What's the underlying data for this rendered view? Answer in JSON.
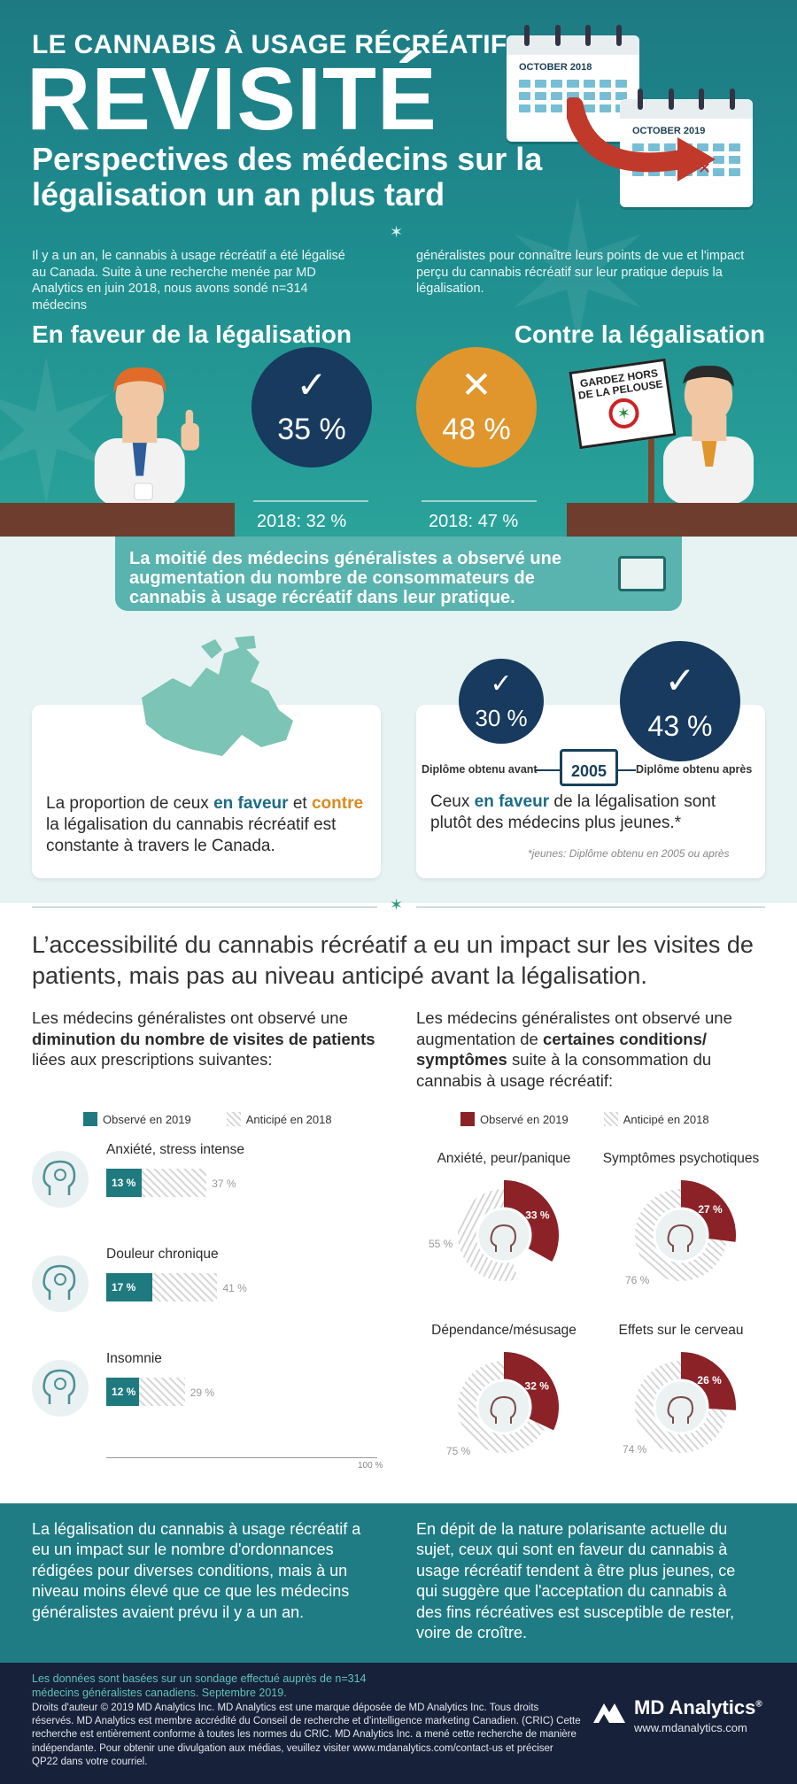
{
  "header": {
    "kicker": "LE CANNABIS À USAGE RÉCRÉATIF",
    "title": "REVISITÉ",
    "subtitle": "Perspectives des médecins sur la légalisation un an plus tard",
    "calendar_2018": "OCTOBER 2018",
    "calendar_2019": "OCTOBER 2019",
    "intro_left": "Il y a un an, le cannabis à usage récréatif a été légalisé au Canada. Suite à une recherche menée par MD Analytics en juin 2018, nous avons sondé n=314 médecins",
    "intro_right": "généralistes pour connaître leurs points de vue et l'impact perçu du cannabis récréatif sur leur pratique depuis la légalisation."
  },
  "legalization": {
    "favor_heading": "En faveur de la légalisation",
    "against_heading": "Contre la légalisation",
    "favor_pct": "35 %",
    "against_pct": "48 %",
    "favor_prev": "2018: 32 %",
    "against_prev": "2018: 47 %",
    "sign_text": "GARDEZ HORS DE LA PELOUSE"
  },
  "banner": {
    "text": "La moitié des médecins généralistes a observé une augmentation du nombre de consommateurs de cannabis à usage récréatif dans leur pratique."
  },
  "canada_card": {
    "text_1": "La proportion de ceux ",
    "favor": "en faveur",
    "text_2": " et ",
    "against": "contre",
    "text_3": " la légalisation du cannabis récréatif est constante à travers le Canada."
  },
  "young_card": {
    "before_pct": "30 %",
    "after_pct": "43 %",
    "before_label": "Diplôme obtenu avant",
    "after_label": "Diplôme obtenu après",
    "year": "2005",
    "text_1": "Ceux ",
    "favor": "en faveur",
    "text_2": " de la légalisation sont plutôt des médecins plus jeunes.*",
    "note": "*jeunes: Diplôme obtenu en 2005 ou après"
  },
  "impact": {
    "headline": "L’accessibilité du cannabis récréatif a eu un impact sur les visites de patients, mais pas au niveau anticipé avant la légalisation."
  },
  "left_col": {
    "intro_1": "Les médecins généralistes ont observé une ",
    "intro_bold": "diminution du nombre de visites de patients",
    "intro_2": " liées aux prescriptions suivantes:",
    "legend_observed": "Observé en 2019",
    "legend_anticipated": "Anticipé en 2018",
    "axis_label": "100 %"
  },
  "right_col": {
    "intro_1": "Les médecins généralistes ont observé une augmentation de ",
    "intro_bold": "certaines conditions/ symptômes",
    "intro_2": " suite à la consommation du cannabis à usage récréatif:",
    "legend_observed": "Observé en 2019",
    "legend_anticipated": "Anticipé en 2018"
  },
  "chart_data": [
    {
      "type": "bar",
      "orientation": "horizontal",
      "categories": [
        "Anxiété, stress intense",
        "Douleur chronique",
        "Insomnie"
      ],
      "series": [
        {
          "name": "Observé en 2019",
          "values": [
            13,
            17,
            12
          ],
          "labels": [
            "13 %",
            "17 %",
            "12 %"
          ]
        },
        {
          "name": "Anticipé en 2018",
          "values": [
            37,
            41,
            29
          ],
          "labels": [
            "37 %",
            "41 %",
            "29 %"
          ]
        }
      ],
      "xlim": [
        0,
        100
      ],
      "colors": {
        "observed": "#1e7a7f",
        "anticipated": "#d8d8d8"
      }
    },
    {
      "type": "pie",
      "categories": [
        "Anxiété, peur/panique",
        "Symptômes psychotiques",
        "Dépendance/mésusage",
        "Effets sur le cerveau"
      ],
      "series": [
        {
          "name": "Observé en 2019",
          "values": [
            33,
            27,
            32,
            26
          ],
          "labels": [
            "33 %",
            "27 %",
            "32 %",
            "26 %"
          ]
        },
        {
          "name": "Anticipé en 2018",
          "values": [
            55,
            76,
            75,
            74
          ],
          "labels": [
            "55 %",
            "76 %",
            "75 %",
            "74 %"
          ]
        }
      ],
      "colors": {
        "observed": "#8a2228",
        "anticipated": "#d8d8d8"
      }
    }
  ],
  "icons": {
    "anxiety": "head-lightning-icon",
    "pain": "head-pain-icon",
    "insomnia": "head-no-sleep-icon",
    "panic": "head-panic-icon",
    "psychotic": "head-psychotic-icon",
    "dependence": "head-pill-icon",
    "brain": "head-brain-icon"
  },
  "conclusion": {
    "left": "La légalisation du cannabis à usage récréatif a eu un impact sur le nombre d'ordonnances rédigées pour diverses conditions, mais à un niveau moins élevé que ce que les médecins généralistes avaient prévu il y a un an.",
    "right": "En dépit de la nature polarisante actuelle du sujet, ceux qui sont en faveur du cannabis à usage récréatif tendent à être plus jeunes, ce qui suggère que l'acceptation du cannabis à des fins récréatives est susceptible de rester, voire de croître."
  },
  "footer": {
    "source": "Les données sont basées sur un sondage effectué auprès de n=314 médecins généralistes canadiens. Septembre 2019.",
    "copyright": "Droits d'auteur © 2019 MD Analytics Inc. MD Analytics est une marque déposée de MD Analytics Inc. Tous droits réservés. MD Analytics est membre accrédité du Conseil de recherche et d'intelligence marketing Canadien. (CRIC) Cette recherche est entièrement conforme à toutes les normes du CRIC. MD Analytics Inc. a mené cette recherche de manière indépendante. Pour obtenir une divulgation aux médias, veuillez visiter www.mdanalytics.com/contact-us  et préciser QP22 dans votre courriel.",
    "logo_name": "MD Analytics",
    "logo_reg": "®",
    "logo_url": "www.mdanalytics.com"
  }
}
